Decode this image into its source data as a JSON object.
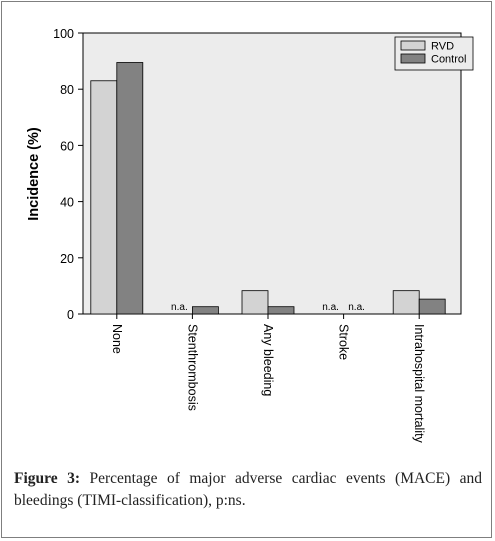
{
  "chart_data": {
    "type": "bar",
    "ylabel": "Incidence (%)",
    "ylim": [
      0,
      100
    ],
    "yticks": [
      0,
      20,
      40,
      60,
      80,
      100
    ],
    "categories": [
      "None",
      "Stenthrombosis",
      "Any bleeding",
      "Stroke",
      "Intrahospital mortality"
    ],
    "series": [
      {
        "name": "RVD",
        "color": "#d3d3d3",
        "values": [
          83,
          null,
          8.3,
          null,
          8.3
        ]
      },
      {
        "name": "Control",
        "color": "#828282",
        "values": [
          89.5,
          2.6,
          2.6,
          null,
          5.3
        ]
      }
    ],
    "na_labels": [
      {
        "category": "Stenthrombosis",
        "series": "RVD",
        "text": "n.a."
      },
      {
        "category": "Stroke",
        "series": "RVD",
        "text": "n.a."
      },
      {
        "category": "Stroke",
        "series": "Control",
        "text": "n.a."
      }
    ],
    "legend_position": "top-right",
    "plot_background": "#ececec",
    "grid": false
  },
  "caption": {
    "label": "Figure 3:",
    "text": " Percentage of major adverse cardiac events (MACE) and bleedings (TIMI-classification), p:ns."
  }
}
